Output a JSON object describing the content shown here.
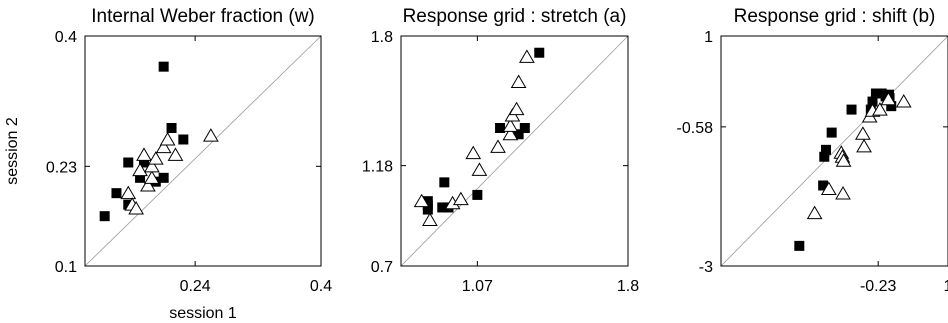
{
  "chart_data": [
    {
      "type": "scatter",
      "title": "Internal Weber fraction (w)",
      "xlabel": "session 1",
      "ylabel": "session 2",
      "xlim": [
        0.1,
        0.4
      ],
      "ylim": [
        0.1,
        0.4
      ],
      "xticks": [
        "0.24",
        "0.4"
      ],
      "yticks": [
        "0.4",
        "0.23",
        "0.1"
      ],
      "diagonal": true,
      "series": [
        {
          "marker": "filled-square",
          "points": [
            [
              0.125,
              0.165
            ],
            [
              0.14,
              0.195
            ],
            [
              0.155,
              0.18
            ],
            [
              0.155,
              0.235
            ],
            [
              0.17,
              0.215
            ],
            [
              0.175,
              0.235
            ],
            [
              0.19,
              0.21
            ],
            [
              0.2,
              0.215
            ],
            [
              0.2,
              0.36
            ],
            [
              0.21,
              0.28
            ],
            [
              0.225,
              0.265
            ]
          ]
        },
        {
          "marker": "open-triangle",
          "points": [
            [
              0.155,
              0.195
            ],
            [
              0.16,
              0.18
            ],
            [
              0.165,
              0.175
            ],
            [
              0.17,
              0.225
            ],
            [
              0.175,
              0.245
            ],
            [
              0.18,
              0.205
            ],
            [
              0.185,
              0.215
            ],
            [
              0.185,
              0.23
            ],
            [
              0.19,
              0.24
            ],
            [
              0.2,
              0.255
            ],
            [
              0.205,
              0.265
            ],
            [
              0.215,
              0.245
            ],
            [
              0.26,
              0.27
            ]
          ]
        }
      ]
    },
    {
      "type": "scatter",
      "title": "Response grid : stretch (a)",
      "xlabel": "",
      "ylabel": "",
      "xlim": [
        0.7,
        1.8
      ],
      "ylim": [
        0.7,
        1.8
      ],
      "xticks": [
        "1.07",
        "1.8"
      ],
      "yticks": [
        "1.8",
        "1.18",
        "0.7"
      ],
      "diagonal": true,
      "series": [
        {
          "marker": "filled-square",
          "points": [
            [
              0.83,
              0.97
            ],
            [
              0.83,
              0.99
            ],
            [
              0.83,
              1.01
            ],
            [
              0.9,
              0.98
            ],
            [
              0.91,
              1.1
            ],
            [
              0.93,
              0.98
            ],
            [
              1.07,
              1.04
            ],
            [
              1.18,
              1.36
            ],
            [
              1.27,
              1.33
            ],
            [
              1.3,
              1.36
            ],
            [
              1.37,
              1.72
            ]
          ]
        },
        {
          "marker": "open-triangle",
          "points": [
            [
              0.8,
              1.01
            ],
            [
              0.84,
              0.92
            ],
            [
              0.95,
              1.0
            ],
            [
              0.99,
              1.02
            ],
            [
              1.05,
              1.24
            ],
            [
              1.08,
              1.16
            ],
            [
              1.17,
              1.27
            ],
            [
              1.23,
              1.33
            ],
            [
              1.23,
              1.37
            ],
            [
              1.24,
              1.42
            ],
            [
              1.26,
              1.45
            ],
            [
              1.27,
              1.58
            ],
            [
              1.31,
              1.7
            ]
          ]
        }
      ]
    },
    {
      "type": "scatter",
      "title": "Response grid : shift (b)",
      "xlabel": "",
      "ylabel": "",
      "xlim": [
        -3,
        1
      ],
      "ylim": [
        -3,
        1
      ],
      "xticks": [
        "-0.23",
        "1"
      ],
      "yticks": [
        "1",
        "-0.58",
        "-3"
      ],
      "diagonal": true,
      "series": [
        {
          "marker": "filled-square",
          "points": [
            [
              -1.62,
              -2.65
            ],
            [
              -1.2,
              -1.6
            ],
            [
              -1.18,
              -1.1
            ],
            [
              -1.15,
              -0.98
            ],
            [
              -1.05,
              -0.68
            ],
            [
              -0.7,
              -0.28
            ],
            [
              -0.36,
              -0.28
            ],
            [
              -0.33,
              -0.14
            ],
            [
              -0.27,
              0.0
            ],
            [
              -0.17,
              0.0
            ],
            [
              -0.1,
              -0.05
            ],
            [
              -0.06,
              -0.1
            ],
            [
              -0.04,
              -0.02
            ],
            [
              -0.03,
              -0.08
            ],
            [
              0.0,
              -0.22
            ]
          ]
        },
        {
          "marker": "open-triangle",
          "points": [
            [
              -1.35,
              -2.08
            ],
            [
              -1.1,
              -1.66
            ],
            [
              -0.85,
              -1.74
            ],
            [
              -0.88,
              -1.03
            ],
            [
              -0.86,
              -1.1
            ],
            [
              -0.84,
              -1.17
            ],
            [
              -0.5,
              -0.7
            ],
            [
              -0.48,
              -0.92
            ],
            [
              -0.38,
              -0.4
            ],
            [
              -0.33,
              -0.3
            ],
            [
              -0.2,
              -0.28
            ],
            [
              -0.05,
              -0.1
            ],
            [
              0.22,
              -0.14
            ]
          ]
        }
      ]
    }
  ]
}
